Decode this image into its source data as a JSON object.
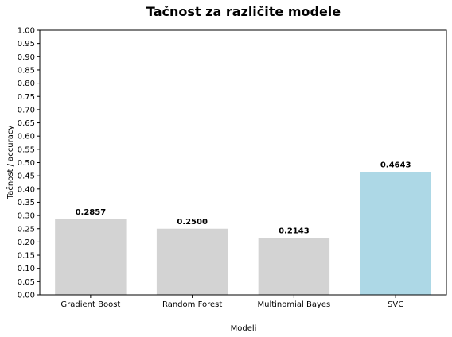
{
  "chart_data": {
    "type": "bar",
    "title": "Tačnost za različite modele",
    "xlabel": "Modeli",
    "ylabel": "Tačnost / accuracy",
    "categories": [
      "Gradient Boost",
      "Random Forest",
      "Multinomial Bayes",
      "SVC"
    ],
    "values": [
      0.2857,
      0.25,
      0.2143,
      0.4643
    ],
    "value_labels": [
      "0.2857",
      "0.2500",
      "0.2143",
      "0.4643"
    ],
    "bar_colors": [
      "#d3d3d3",
      "#d3d3d3",
      "#d3d3d3",
      "#add8e6"
    ],
    "ylim": [
      0,
      1.0
    ],
    "yticks": [
      "0.00",
      "0.05",
      "0.10",
      "0.15",
      "0.20",
      "0.25",
      "0.30",
      "0.35",
      "0.40",
      "0.45",
      "0.50",
      "0.55",
      "0.60",
      "0.65",
      "0.70",
      "0.75",
      "0.80",
      "0.85",
      "0.90",
      "0.95",
      "1.00"
    ],
    "grid": false,
    "legend": "none"
  }
}
